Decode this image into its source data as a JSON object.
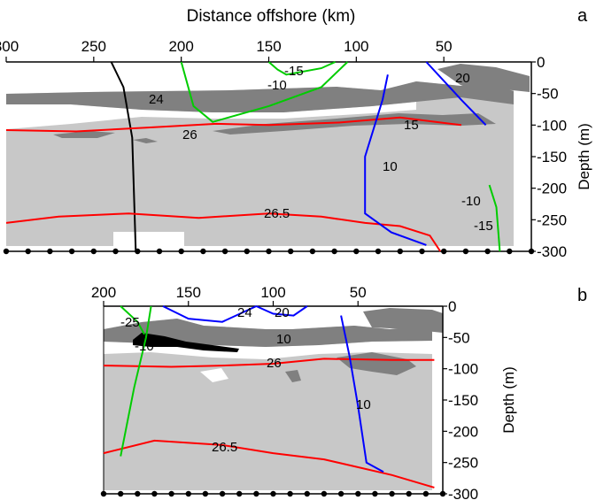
{
  "chart_data": [
    {
      "type": "contour",
      "panel_label": "a",
      "xlabel": "Distance offshore (km)",
      "ylabel": "Depth (m)",
      "x_ticks": [
        "300",
        "250",
        "200",
        "150",
        "100",
        "50"
      ],
      "x_tick_values": [
        300,
        250,
        200,
        150,
        100,
        50
      ],
      "y_ticks": [
        "0",
        "-50",
        "-100",
        "-150",
        "-200",
        "-250",
        "-300"
      ],
      "y_tick_values": [
        0,
        -50,
        -100,
        -150,
        -200,
        -250,
        -300
      ],
      "xlim": [
        300,
        0
      ],
      "ylim": [
        -300,
        0
      ],
      "station_count": 25,
      "colors": {
        "density": "#ff0000",
        "temperature": "#000000",
        "cold_contours": "#00cc00",
        "warm_contours": "#0000ff",
        "shading_light": "#c8c8c8",
        "shading_dark": "#808080"
      },
      "series": [
        {
          "name": "24",
          "color": "#000000",
          "x": [
            240,
            233,
            228,
            226
          ],
          "y": [
            0,
            -40,
            -120,
            -300
          ]
        },
        {
          "name": "26.5",
          "color": "#ff0000",
          "x": [
            300,
            270,
            230,
            190,
            150,
            120,
            95,
            75,
            58,
            52
          ],
          "y": [
            -255,
            -245,
            -240,
            -247,
            -240,
            -245,
            -255,
            -260,
            -275,
            -300
          ]
        },
        {
          "name": "26",
          "color": "#ff0000",
          "x": [
            300,
            260,
            220,
            180,
            150,
            110,
            75,
            40
          ],
          "y": [
            -108,
            -110,
            -104,
            -98,
            -100,
            -96,
            -88,
            -100
          ]
        },
        {
          "name": "10",
          "color": "#0000ff",
          "x": [
            82,
            85,
            95,
            95,
            80,
            60
          ],
          "y": [
            -20,
            -60,
            -150,
            -240,
            -270,
            -290
          ]
        },
        {
          "name": "15",
          "color": "#00cc00",
          "x": [
            150,
            145,
            140,
            120,
            112
          ],
          "y": [
            0,
            -12,
            -20,
            -10,
            0
          ]
        },
        {
          "name": "-10",
          "color": "#00cc00",
          "x": [
            200,
            193,
            182,
            150,
            120,
            105
          ],
          "y": [
            0,
            -70,
            -95,
            -70,
            -40,
            0
          ]
        },
        {
          "name": "20",
          "color": "#0000ff",
          "x": [
            60,
            50,
            40,
            26
          ],
          "y": [
            0,
            -30,
            -60,
            -100
          ]
        },
        {
          "name": "-15",
          "color": "#00cc00",
          "x": [
            24,
            20,
            18
          ],
          "y": [
            -195,
            -230,
            -300
          ]
        }
      ],
      "labels": [
        "24",
        "-15",
        "-10",
        "20",
        "26",
        "15",
        "10",
        "-10",
        "26.5",
        "-15"
      ]
    },
    {
      "type": "contour",
      "panel_label": "b",
      "ylabel": "Depth (m)",
      "x_ticks": [
        "200",
        "150",
        "100",
        "50"
      ],
      "x_tick_values": [
        200,
        150,
        100,
        50
      ],
      "y_ticks": [
        "0",
        "-50",
        "-100",
        "-150",
        "-200",
        "-250",
        "-300"
      ],
      "y_tick_values": [
        0,
        -50,
        -100,
        -150,
        -200,
        -250,
        -300
      ],
      "xlim": [
        200,
        0
      ],
      "ylim": [
        -300,
        0
      ],
      "station_count": 21,
      "series": [
        {
          "name": "26.5",
          "color": "#ff0000",
          "x": [
            200,
            170,
            130,
            100,
            70,
            30,
            5
          ],
          "y": [
            -235,
            -215,
            -222,
            -235,
            -245,
            -270,
            -290
          ]
        },
        {
          "name": "26",
          "color": "#ff0000",
          "x": [
            200,
            160,
            130,
            100,
            70,
            30,
            5
          ],
          "y": [
            -95,
            -97,
            -95,
            -92,
            -84,
            -86,
            -86
          ]
        },
        {
          "name": "24",
          "color": "#0000ff",
          "x": [
            165,
            150,
            130,
            110
          ],
          "y": [
            0,
            -20,
            -25,
            0
          ]
        },
        {
          "name": "20",
          "color": "#0000ff",
          "x": [
            110,
            100,
            88,
            80
          ],
          "y": [
            0,
            -12,
            -15,
            0
          ]
        },
        {
          "name": "10",
          "color": "#0000ff",
          "x": [
            60,
            55,
            50,
            45,
            35
          ],
          "y": [
            -15,
            -80,
            -160,
            -250,
            -265
          ]
        },
        {
          "name": "-25",
          "color": "#00cc00",
          "x": [
            190,
            180,
            176
          ],
          "y": [
            0,
            -25,
            -45
          ]
        },
        {
          "name": "-10",
          "color": "#00cc00",
          "x": [
            172,
            175,
            182,
            190
          ],
          "y": [
            0,
            -50,
            -130,
            -240
          ]
        }
      ],
      "labels": [
        "-25",
        "24",
        "20",
        "-10",
        "10",
        "26",
        "10",
        "26.5"
      ]
    }
  ]
}
